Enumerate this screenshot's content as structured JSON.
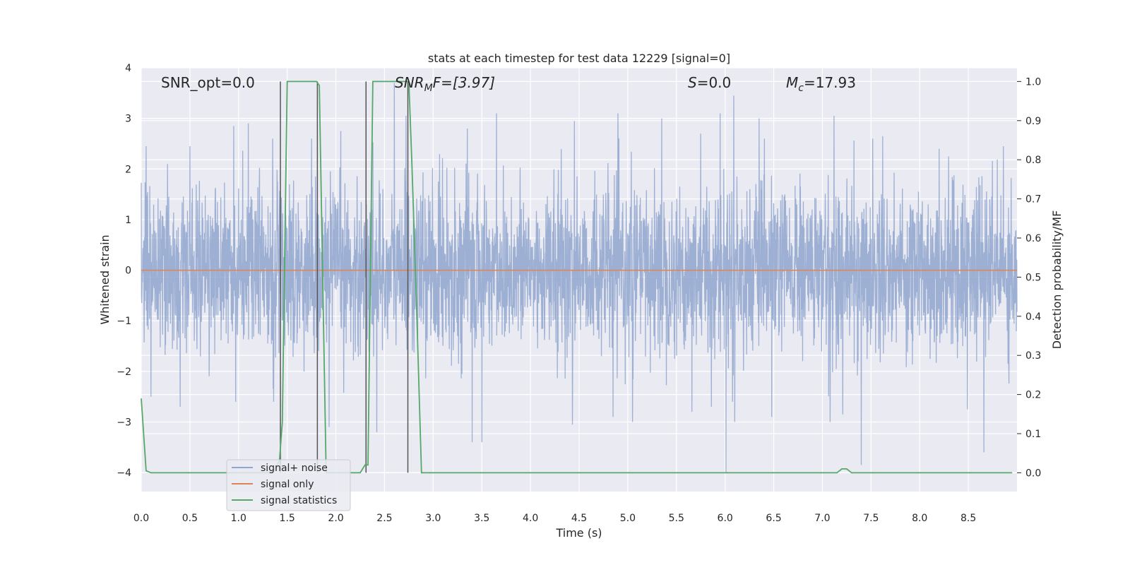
{
  "chart_data": {
    "type": "line",
    "title": "stats at each timestep for test data 12229 [signal=0]",
    "xlabel": "Time (s)",
    "ylabel": "Whitened strain",
    "y2label": "Detection probability/MF",
    "xlim": [
      0.0,
      9.0
    ],
    "ylim": [
      -4.375,
      4.0
    ],
    "y2lim": [
      -0.048,
      1.035
    ],
    "x_ticks": [
      "0.0",
      "0.5",
      "1.0",
      "1.5",
      "2.0",
      "2.5",
      "3.0",
      "3.5",
      "4.0",
      "4.5",
      "5.0",
      "5.5",
      "6.0",
      "6.5",
      "7.0",
      "7.5",
      "8.0",
      "8.5"
    ],
    "y_ticks": [
      "4",
      "3",
      "2",
      "1",
      "0",
      "−1",
      "−2",
      "−3",
      "−4"
    ],
    "y2_ticks": [
      "1.0",
      "0.9",
      "0.8",
      "0.7",
      "0.6",
      "0.5",
      "0.4",
      "0.3",
      "0.2",
      "0.1",
      "0.0"
    ],
    "grid": true,
    "legend_position": "lower-left",
    "annotations": {
      "snr_opt": "SNR_opt=0.0",
      "snr_mf_main": "SNR",
      "snr_mf_sub": "M",
      "snr_mf_rest": "F=[3.97]",
      "s_main": "S",
      "s_rest": "=0.0",
      "mc_main": "M",
      "mc_sub": "c",
      "mc_rest": "=17.93"
    },
    "series": [
      {
        "name": "signal+ noise",
        "color": "#8fa6cf",
        "noise_envelope": {
          "typical_amplitude": 1.3,
          "peak_highs": [
            [
              0.05,
              2.45
            ],
            [
              0.27,
              2.1
            ],
            [
              0.5,
              2.45
            ],
            [
              0.95,
              2.85
            ],
            [
              1.1,
              2.9
            ],
            [
              1.35,
              2.6
            ],
            [
              1.75,
              2.6
            ],
            [
              2.05,
              2.75
            ],
            [
              2.6,
              3.7
            ],
            [
              2.72,
              3.05
            ],
            [
              3.35,
              2.8
            ],
            [
              3.65,
              3.1
            ],
            [
              4.45,
              2.95
            ],
            [
              4.9,
              3.1
            ],
            [
              5.35,
              3.0
            ],
            [
              5.75,
              2.7
            ],
            [
              5.95,
              3.1
            ],
            [
              6.09,
              3.45
            ],
            [
              6.35,
              3.0
            ],
            [
              7.12,
              3.05
            ],
            [
              7.62,
              2.65
            ],
            [
              8.2,
              2.4
            ],
            [
              8.49,
              2.8
            ],
            [
              8.86,
              2.45
            ]
          ],
          "peak_lows": [
            [
              0.1,
              -2.5
            ],
            [
              0.4,
              -2.7
            ],
            [
              0.97,
              -2.6
            ],
            [
              1.36,
              -2.6
            ],
            [
              1.93,
              -3.1
            ],
            [
              2.42,
              -3.2
            ],
            [
              3.4,
              -3.4
            ],
            [
              3.5,
              -3.4
            ],
            [
              4.43,
              -3.05
            ],
            [
              4.85,
              -2.9
            ],
            [
              5.05,
              -3.0
            ],
            [
              5.66,
              -2.8
            ],
            [
              5.86,
              -2.7
            ],
            [
              6.01,
              -4.0
            ],
            [
              6.1,
              -3.0
            ],
            [
              6.48,
              -2.9
            ],
            [
              7.08,
              -3.0
            ],
            [
              7.21,
              -2.85
            ],
            [
              7.4,
              -3.85
            ],
            [
              8.49,
              -2.75
            ],
            [
              8.66,
              -3.6
            ]
          ]
        }
      },
      {
        "name": "signal only",
        "color": "#dd8452",
        "x": [
          0.0,
          9.0
        ],
        "y": [
          0.0,
          0.0
        ]
      },
      {
        "name": "signal statistics",
        "color": "#55a868",
        "axis": "right",
        "x": [
          0.0,
          0.05,
          0.1,
          1.35,
          1.42,
          1.45,
          1.5,
          1.8,
          1.83,
          1.9,
          2.25,
          2.3,
          2.33,
          2.38,
          2.72,
          2.75,
          2.78,
          2.83,
          2.88,
          7.15,
          7.2,
          7.25,
          7.3,
          8.95
        ],
        "y": [
          0.19,
          0.005,
          0.0,
          0.0,
          0.03,
          0.13,
          1.0,
          1.0,
          0.99,
          0.0,
          0.0,
          0.02,
          0.02,
          1.0,
          1.0,
          1.0,
          0.8,
          0.42,
          0.0,
          0.0,
          0.01,
          0.01,
          0.0,
          0.0
        ]
      }
    ],
    "vertical_markers": {
      "color": "#555555",
      "x": [
        1.43,
        1.81,
        2.31,
        2.74
      ]
    }
  }
}
